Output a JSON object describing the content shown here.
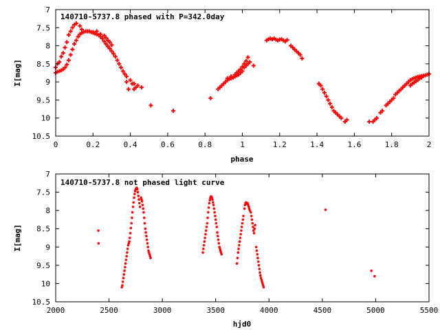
{
  "colors": {
    "points": "#ff0000",
    "frame": "#000000",
    "background": "#ffffff"
  },
  "chart_data": [
    {
      "type": "scatter",
      "title": "140710-5737.8 phased with P=342.0day",
      "xlabel": "phase",
      "ylabel": "I[mag]",
      "xlim": [
        0,
        2
      ],
      "ylim": [
        10.5,
        7
      ],
      "y_inverted": true,
      "grid": false,
      "legend": "none",
      "xticks": [
        0,
        0.2,
        0.4,
        0.6,
        0.8,
        1,
        1.2,
        1.4,
        1.6,
        1.8,
        2
      ],
      "xtick_labels": [
        "0",
        "0.2",
        "0.4",
        "0.6",
        "0.8",
        "1",
        "1.2",
        "1.4",
        "1.6",
        "1.8",
        "2"
      ],
      "yticks": [
        7,
        7.5,
        8,
        8.5,
        9,
        9.5,
        10,
        10.5
      ],
      "ytick_labels": [
        "7",
        "7.5",
        "8",
        "8.5",
        "9",
        "9.5",
        "10",
        "10.5"
      ],
      "marker": "plus",
      "series": [
        {
          "x": [
            0.0,
            0.01,
            0.02,
            0.03,
            0.04,
            0.05,
            0.06,
            0.07,
            0.08,
            0.09,
            0.1,
            0.11,
            0.12,
            0.13,
            0.14,
            0.15,
            0.16,
            0.17,
            0.18,
            0.19,
            0.2,
            0.21,
            0.22,
            0.23,
            0.24,
            0.25,
            0.26,
            0.27,
            0.28,
            0.29,
            0.3,
            0.31,
            0.32,
            0.33,
            0.34,
            0.35,
            0.36,
            0.37,
            0.38,
            0.4,
            0.42,
            0.44,
            0.46,
            0.0,
            0.01,
            0.02,
            0.03,
            0.04,
            0.05,
            0.06,
            0.07,
            0.08,
            0.09,
            0.1,
            0.11,
            0.13,
            0.14,
            0.2,
            0.22,
            0.24,
            0.26,
            0.27,
            0.28,
            0.29,
            0.3,
            0.38,
            0.39,
            0.41,
            0.42,
            0.43,
            0.51,
            0.63,
            0.83,
            0.87,
            0.88,
            0.89,
            0.9,
            0.91,
            0.92,
            0.93,
            0.94,
            0.95,
            0.96,
            0.97,
            0.98,
            0.99,
            1.0,
            1.01,
            1.02,
            1.03,
            1.04,
            1.06,
            0.92,
            0.94,
            0.96,
            0.97,
            0.98,
            0.99,
            1.0,
            1.01,
            1.02,
            1.03,
            1.13,
            1.14,
            1.15,
            1.16,
            1.17,
            1.18,
            1.19,
            1.2,
            1.21,
            1.22,
            1.23,
            1.24,
            1.26,
            1.27,
            1.28,
            1.29,
            1.3,
            1.31,
            1.32,
            1.41,
            1.42,
            1.43,
            1.44,
            1.45,
            1.46,
            1.47,
            1.48,
            1.49,
            1.5,
            1.51,
            1.52,
            1.53,
            1.55,
            1.56,
            1.68,
            1.7,
            1.71,
            1.72,
            1.74,
            1.75,
            1.77,
            1.78,
            1.79,
            1.8,
            1.81,
            1.82,
            1.83,
            1.84,
            1.85,
            1.86,
            1.87,
            1.88,
            1.89,
            1.9,
            1.91,
            1.92,
            1.93,
            1.94,
            1.95,
            1.96,
            1.97,
            1.98,
            1.99,
            2.0,
            1.9,
            1.91,
            1.92,
            1.93,
            1.94,
            1.95,
            1.96
          ],
          "y": [
            8.75,
            8.72,
            8.7,
            8.68,
            8.65,
            8.6,
            8.52,
            8.4,
            8.25,
            8.1,
            7.95,
            7.85,
            7.75,
            7.68,
            7.64,
            7.62,
            7.6,
            7.6,
            7.6,
            7.62,
            7.64,
            7.66,
            7.68,
            7.7,
            7.75,
            7.8,
            7.88,
            7.95,
            8.02,
            8.08,
            8.15,
            8.22,
            8.3,
            8.4,
            8.5,
            8.6,
            8.7,
            8.78,
            8.85,
            8.95,
            9.05,
            9.1,
            9.15,
            8.6,
            8.5,
            8.45,
            8.3,
            8.2,
            8.05,
            7.9,
            7.7,
            7.6,
            7.5,
            7.42,
            7.38,
            7.45,
            7.55,
            7.62,
            7.6,
            7.68,
            7.72,
            7.78,
            7.85,
            7.9,
            7.98,
            9.0,
            9.2,
            9.05,
            9.2,
            9.15,
            9.65,
            9.8,
            9.45,
            9.2,
            9.15,
            9.1,
            9.05,
            9.0,
            8.95,
            8.92,
            8.9,
            8.88,
            8.85,
            8.82,
            8.8,
            8.75,
            8.7,
            8.6,
            8.55,
            8.5,
            8.45,
            8.55,
            8.9,
            8.85,
            8.8,
            8.75,
            8.7,
            8.65,
            8.58,
            8.5,
            8.42,
            8.32,
            7.85,
            7.82,
            7.8,
            7.82,
            7.8,
            7.83,
            7.85,
            7.83,
            7.82,
            7.85,
            7.88,
            7.84,
            8.0,
            8.05,
            8.1,
            8.15,
            8.2,
            8.25,
            8.35,
            9.05,
            9.1,
            9.2,
            9.3,
            9.4,
            9.5,
            9.6,
            9.7,
            9.8,
            9.85,
            9.9,
            9.95,
            10.0,
            10.1,
            10.05,
            10.1,
            10.1,
            10.05,
            10.0,
            9.85,
            9.8,
            9.65,
            9.6,
            9.55,
            9.5,
            9.45,
            9.35,
            9.3,
            9.25,
            9.2,
            9.15,
            9.1,
            9.05,
            9.0,
            8.95,
            8.92,
            8.9,
            8.88,
            8.86,
            8.85,
            8.84,
            8.83,
            8.82,
            8.8,
            8.78,
            9.1,
            9.05,
            9.02,
            8.98,
            8.95,
            8.9,
            8.88
          ]
        }
      ]
    },
    {
      "type": "scatter",
      "title": "140710-5737.8 not phased light curve",
      "xlabel": "hjd0",
      "ylabel": "I[mag]",
      "xlim": [
        2000,
        5500
      ],
      "ylim": [
        10.5,
        7
      ],
      "y_inverted": true,
      "grid": false,
      "legend": "none",
      "xticks": [
        2000,
        2500,
        3000,
        3500,
        4000,
        4500,
        5000,
        5500
      ],
      "xtick_labels": [
        "2000",
        "2500",
        "3000",
        "3500",
        "4000",
        "4500",
        "5000",
        "5500"
      ],
      "yticks": [
        7,
        7.5,
        8,
        8.5,
        9,
        9.5,
        10,
        10.5
      ],
      "ytick_labels": [
        "7",
        "7.5",
        "8",
        "8.5",
        "9",
        "9.5",
        "10",
        "10.5"
      ],
      "marker": "dot",
      "series": [
        {
          "x": [
            2400,
            2402,
            2620,
            2625,
            2630,
            2635,
            2640,
            2645,
            2650,
            2655,
            2660,
            2665,
            2670,
            2675,
            2680,
            2685,
            2690,
            2695,
            2700,
            2705,
            2710,
            2715,
            2720,
            2725,
            2730,
            2735,
            2740,
            2745,
            2750,
            2755,
            2760,
            2765,
            2770,
            2775,
            2780,
            2785,
            2790,
            2800,
            2805,
            2810,
            2815,
            2820,
            2825,
            2830,
            2835,
            2840,
            2845,
            2850,
            2855,
            2860,
            2865,
            2870,
            2875,
            2880,
            2885,
            2890,
            3380,
            3385,
            3390,
            3395,
            3400,
            3405,
            3410,
            3415,
            3420,
            3425,
            3430,
            3435,
            3440,
            3445,
            3450,
            3455,
            3460,
            3465,
            3470,
            3475,
            3480,
            3485,
            3490,
            3495,
            3500,
            3505,
            3510,
            3515,
            3520,
            3525,
            3530,
            3535,
            3540,
            3545,
            3550,
            3555,
            3700,
            3705,
            3710,
            3715,
            3720,
            3725,
            3730,
            3735,
            3740,
            3745,
            3750,
            3755,
            3760,
            3770,
            3775,
            3780,
            3785,
            3790,
            3795,
            3800,
            3805,
            3810,
            3815,
            3820,
            3830,
            3835,
            3840,
            3845,
            3850,
            3855,
            3860,
            3865,
            3870,
            3880,
            3885,
            3890,
            3895,
            3900,
            3905,
            3910,
            3915,
            3920,
            3925,
            3930,
            3935,
            3940,
            3945,
            3950,
            4530,
            4960,
            4990
          ],
          "y": [
            8.55,
            8.9,
            10.1,
            10.05,
            9.95,
            9.85,
            9.75,
            9.65,
            9.55,
            9.45,
            9.35,
            9.25,
            9.15,
            9.05,
            8.95,
            8.9,
            8.85,
            8.75,
            8.62,
            8.48,
            8.35,
            8.2,
            8.05,
            7.9,
            7.78,
            7.65,
            7.55,
            7.47,
            7.42,
            7.4,
            7.38,
            7.42,
            7.5,
            7.6,
            7.7,
            7.8,
            7.9,
            7.65,
            7.7,
            7.75,
            7.85,
            7.95,
            8.05,
            8.2,
            8.35,
            8.5,
            8.6,
            8.7,
            8.8,
            8.9,
            9.0,
            9.1,
            9.15,
            9.2,
            9.25,
            9.3,
            9.15,
            9.05,
            8.95,
            8.85,
            8.75,
            8.65,
            8.55,
            8.45,
            8.35,
            8.2,
            8.05,
            7.92,
            7.8,
            7.72,
            7.66,
            7.62,
            7.62,
            7.65,
            7.7,
            7.78,
            7.85,
            7.95,
            8.05,
            8.15,
            8.25,
            8.35,
            8.45,
            8.6,
            8.7,
            8.8,
            8.9,
            9.0,
            9.05,
            9.1,
            9.15,
            9.2,
            9.45,
            9.3,
            9.15,
            9.05,
            8.95,
            8.85,
            8.75,
            8.65,
            8.55,
            8.45,
            8.35,
            8.25,
            8.15,
            7.95,
            7.85,
            7.8,
            7.78,
            7.8,
            7.82,
            7.8,
            7.85,
            7.9,
            7.95,
            8.0,
            8.05,
            8.15,
            8.25,
            8.35,
            8.45,
            8.55,
            8.62,
            8.5,
            8.4,
            9.0,
            9.1,
            9.2,
            9.3,
            9.4,
            9.5,
            9.6,
            9.7,
            9.78,
            9.85,
            9.9,
            9.95,
            10.0,
            10.05,
            10.1,
            7.98,
            9.65,
            9.8
          ]
        }
      ]
    }
  ]
}
